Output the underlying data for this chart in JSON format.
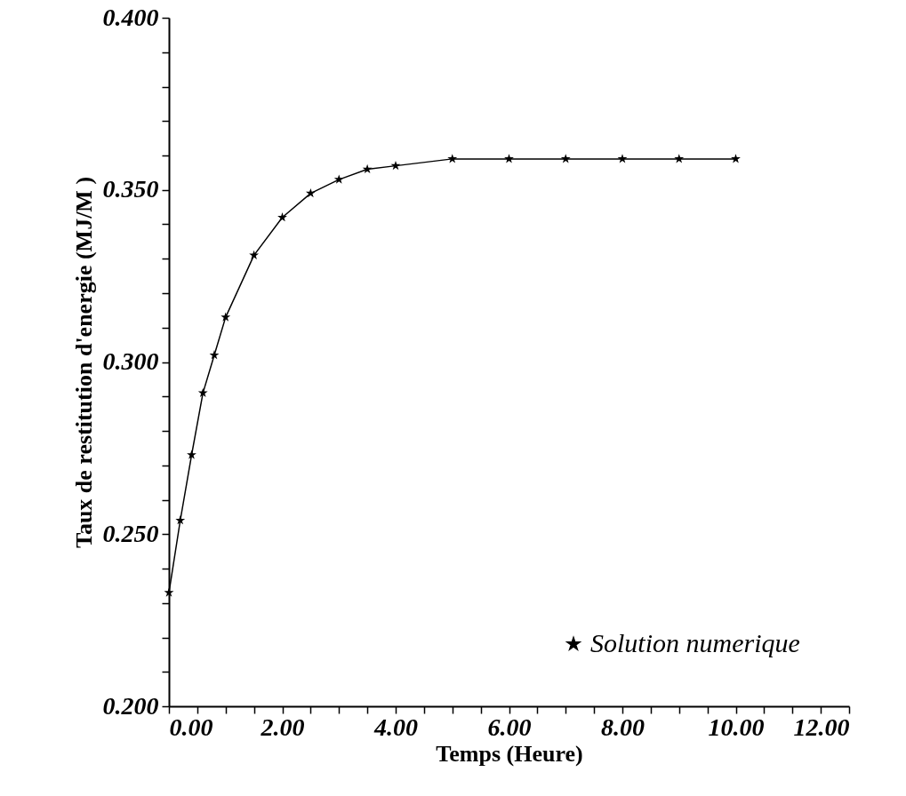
{
  "chart_data": {
    "type": "line",
    "xlabel": "Temps (Heure)",
    "ylabel": "Taux de restitution d'energie (MJ/M )",
    "x": [
      0,
      0.2,
      0.4,
      0.6,
      0.8,
      1.0,
      1.5,
      2.0,
      2.5,
      3.0,
      3.5,
      4.0,
      5.0,
      6.0,
      7.0,
      8.0,
      9.0,
      10.0
    ],
    "series": [
      {
        "name": "Solution numerique",
        "color": "#000000",
        "values": [
          0.233,
          0.254,
          0.273,
          0.291,
          0.302,
          0.313,
          0.331,
          0.342,
          0.349,
          0.353,
          0.356,
          0.357,
          0.359,
          0.359,
          0.359,
          0.359,
          0.359,
          0.359
        ]
      }
    ],
    "marker": "star",
    "line_style": "solid",
    "legend": "bottom right",
    "grid": false,
    "xlim": [
      0,
      12
    ],
    "xticks": [
      {
        "value": 0,
        "label": "0.00"
      },
      {
        "value": 0.5,
        "label": null
      },
      {
        "value": 1,
        "label": null
      },
      {
        "value": 1.5,
        "label": null
      },
      {
        "value": 2,
        "label": "2.00"
      },
      {
        "value": 2.5,
        "label": null
      },
      {
        "value": 3,
        "label": null
      },
      {
        "value": 3.5,
        "label": null
      },
      {
        "value": 4,
        "label": "4.00"
      },
      {
        "value": 4.5,
        "label": null
      },
      {
        "value": 5,
        "label": null
      },
      {
        "value": 5.5,
        "label": null
      },
      {
        "value": 6,
        "label": "6.00"
      },
      {
        "value": 6.5,
        "label": null
      },
      {
        "value": 7,
        "label": null
      },
      {
        "value": 7.5,
        "label": null
      },
      {
        "value": 8,
        "label": "8.00"
      },
      {
        "value": 8.5,
        "label": null
      },
      {
        "value": 9,
        "label": null
      },
      {
        "value": 9.5,
        "label": null
      },
      {
        "value": 10,
        "label": "10.00"
      },
      {
        "value": 10.5,
        "label": null
      },
      {
        "value": 11,
        "label": null
      },
      {
        "value": 11.5,
        "label": null
      },
      {
        "value": 12,
        "label": "12.00"
      }
    ],
    "ylim": [
      0.2,
      0.4
    ],
    "yticks": [
      {
        "value": 0.2,
        "label": "0.200"
      },
      {
        "value": 0.21,
        "label": null
      },
      {
        "value": 0.22,
        "label": null
      },
      {
        "value": 0.23,
        "label": null
      },
      {
        "value": 0.24,
        "label": null
      },
      {
        "value": 0.25,
        "label": "0.250"
      },
      {
        "value": 0.26,
        "label": null
      },
      {
        "value": 0.27,
        "label": null
      },
      {
        "value": 0.28,
        "label": null
      },
      {
        "value": 0.29,
        "label": null
      },
      {
        "value": 0.3,
        "label": "0.300"
      },
      {
        "value": 0.31,
        "label": null
      },
      {
        "value": 0.32,
        "label": null
      },
      {
        "value": 0.33,
        "label": null
      },
      {
        "value": 0.34,
        "label": null
      },
      {
        "value": 0.35,
        "label": "0.350"
      },
      {
        "value": 0.36,
        "label": null
      },
      {
        "value": 0.37,
        "label": null
      },
      {
        "value": 0.38,
        "label": null
      },
      {
        "value": 0.39,
        "label": null
      },
      {
        "value": 0.4,
        "label": "0.400"
      }
    ]
  }
}
